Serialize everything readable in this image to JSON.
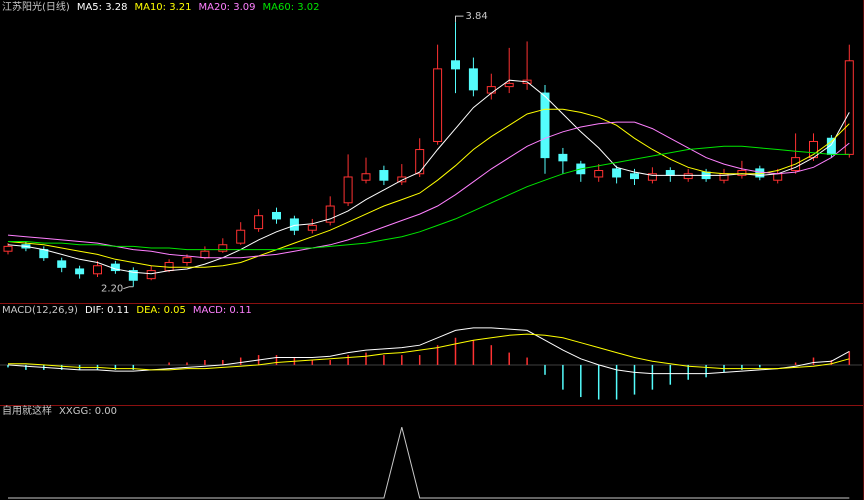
{
  "chart_data": [
    {
      "type": "candlestick",
      "title": "江苏阳光(日线)",
      "title_color": "#c8c8c8",
      "up_color": "#ff3232",
      "down_color": "#54fcfc",
      "ylim": [
        2.13,
        3.89
      ],
      "open": [
        2.42,
        2.46,
        2.43,
        2.36,
        2.31,
        2.28,
        2.34,
        2.3,
        2.25,
        2.3,
        2.35,
        2.38,
        2.42,
        2.47,
        2.56,
        2.66,
        2.62,
        2.55,
        2.6,
        2.72,
        2.86,
        2.92,
        2.85,
        2.9,
        3.1,
        3.6,
        3.55,
        3.4,
        3.44,
        3.46,
        3.4,
        3.02,
        2.96,
        2.88,
        2.93,
        2.9,
        2.86,
        2.92,
        2.87,
        2.91,
        2.86,
        2.89,
        2.93,
        2.86,
        2.92,
        3.0,
        3.12,
        3.02
      ],
      "high": [
        2.47,
        2.48,
        2.45,
        2.38,
        2.33,
        2.36,
        2.36,
        2.32,
        2.33,
        2.37,
        2.4,
        2.45,
        2.5,
        2.6,
        2.68,
        2.69,
        2.64,
        2.62,
        2.76,
        3.02,
        3.0,
        2.95,
        2.96,
        3.12,
        3.7,
        3.84,
        3.62,
        3.52,
        3.68,
        3.72,
        3.45,
        3.06,
        2.98,
        2.96,
        2.95,
        2.93,
        2.94,
        2.94,
        2.93,
        2.93,
        2.93,
        2.98,
        2.95,
        2.93,
        3.15,
        3.15,
        3.14,
        3.7
      ],
      "low": [
        2.4,
        2.42,
        2.36,
        2.29,
        2.25,
        2.26,
        2.28,
        2.2,
        2.24,
        2.29,
        2.33,
        2.37,
        2.41,
        2.46,
        2.54,
        2.59,
        2.52,
        2.53,
        2.58,
        2.7,
        2.84,
        2.83,
        2.83,
        2.88,
        3.08,
        3.4,
        3.38,
        3.36,
        3.4,
        3.42,
        2.9,
        2.9,
        2.85,
        2.85,
        2.84,
        2.83,
        2.84,
        2.85,
        2.85,
        2.85,
        2.84,
        2.87,
        2.86,
        2.84,
        2.9,
        2.98,
        3.0,
        3.0
      ],
      "close": [
        2.45,
        2.44,
        2.38,
        2.32,
        2.28,
        2.33,
        2.3,
        2.24,
        2.3,
        2.35,
        2.38,
        2.42,
        2.46,
        2.55,
        2.64,
        2.62,
        2.55,
        2.58,
        2.7,
        2.88,
        2.9,
        2.86,
        2.88,
        3.05,
        3.55,
        3.55,
        3.42,
        3.44,
        3.46,
        3.48,
        3.0,
        2.98,
        2.9,
        2.92,
        2.88,
        2.87,
        2.9,
        2.89,
        2.9,
        2.87,
        2.9,
        2.92,
        2.88,
        2.9,
        3.0,
        3.1,
        3.02,
        3.6
      ],
      "high_label": {
        "value": 3.84,
        "label": "3.84"
      },
      "low_label": {
        "value": 2.2,
        "label": "2.20"
      },
      "series": [
        {
          "name": "MA5",
          "label": "MA5: 3.28",
          "color": "#ffffff",
          "values": [
            2.46,
            2.45,
            2.43,
            2.4,
            2.37,
            2.35,
            2.31,
            2.29,
            2.28,
            2.3,
            2.31,
            2.34,
            2.38,
            2.43,
            2.49,
            2.54,
            2.58,
            2.59,
            2.62,
            2.67,
            2.74,
            2.8,
            2.86,
            2.91,
            3.05,
            3.18,
            3.31,
            3.4,
            3.48,
            3.47,
            3.38,
            3.27,
            3.16,
            3.06,
            2.94,
            2.91,
            2.89,
            2.89,
            2.89,
            2.89,
            2.89,
            2.9,
            2.89,
            2.9,
            2.94,
            3.0,
            3.08,
            3.28
          ]
        },
        {
          "name": "MA10",
          "label": "MA10: 3.21",
          "color": "#ffff00",
          "values": [
            2.48,
            2.47,
            2.46,
            2.44,
            2.42,
            2.4,
            2.37,
            2.35,
            2.33,
            2.32,
            2.32,
            2.32,
            2.33,
            2.35,
            2.39,
            2.43,
            2.47,
            2.51,
            2.55,
            2.6,
            2.65,
            2.7,
            2.74,
            2.78,
            2.86,
            2.95,
            3.05,
            3.13,
            3.2,
            3.27,
            3.3,
            3.3,
            3.28,
            3.25,
            3.2,
            3.12,
            3.05,
            2.99,
            2.94,
            2.91,
            2.9,
            2.9,
            2.9,
            2.92,
            2.96,
            3.02,
            3.1,
            3.21
          ]
        },
        {
          "name": "MA20",
          "label": "MA20: 3.09",
          "color": "#ff80ff",
          "values": [
            2.52,
            2.51,
            2.5,
            2.49,
            2.48,
            2.47,
            2.45,
            2.43,
            2.42,
            2.4,
            2.39,
            2.38,
            2.38,
            2.38,
            2.39,
            2.4,
            2.42,
            2.44,
            2.46,
            2.49,
            2.53,
            2.57,
            2.61,
            2.65,
            2.7,
            2.77,
            2.85,
            2.93,
            3.0,
            3.07,
            3.12,
            3.16,
            3.19,
            3.21,
            3.22,
            3.22,
            3.18,
            3.12,
            3.06,
            3.0,
            2.96,
            2.93,
            2.91,
            2.9,
            2.91,
            2.94,
            3.0,
            3.09
          ]
        },
        {
          "name": "MA60",
          "label": "MA60: 3.02",
          "color": "#00e600",
          "values": [
            2.48,
            2.48,
            2.47,
            2.47,
            2.46,
            2.46,
            2.45,
            2.45,
            2.44,
            2.44,
            2.43,
            2.43,
            2.43,
            2.43,
            2.43,
            2.43,
            2.44,
            2.44,
            2.45,
            2.46,
            2.47,
            2.49,
            2.51,
            2.54,
            2.58,
            2.62,
            2.67,
            2.72,
            2.77,
            2.82,
            2.86,
            2.9,
            2.93,
            2.95,
            2.97,
            2.99,
            3.01,
            3.03,
            3.05,
            3.06,
            3.07,
            3.07,
            3.06,
            3.05,
            3.04,
            3.03,
            3.02,
            3.02
          ]
        }
      ]
    },
    {
      "type": "macd",
      "title": "MACD(12,26,9)",
      "title_color": "#c8c8c8",
      "up_color": "#ff3232",
      "down_color": "#54fcfc",
      "ylim": [
        -0.3,
        0.38
      ],
      "series": [
        {
          "name": "DIF",
          "label": "DIF: 0.11",
          "color": "#ffffff",
          "values": [
            0.0,
            -0.01,
            -0.02,
            -0.03,
            -0.04,
            -0.04,
            -0.05,
            -0.05,
            -0.04,
            -0.03,
            -0.02,
            -0.01,
            0.0,
            0.02,
            0.04,
            0.06,
            0.06,
            0.06,
            0.07,
            0.1,
            0.12,
            0.13,
            0.14,
            0.16,
            0.22,
            0.28,
            0.3,
            0.3,
            0.29,
            0.28,
            0.2,
            0.12,
            0.05,
            0.0,
            -0.04,
            -0.06,
            -0.07,
            -0.07,
            -0.07,
            -0.07,
            -0.06,
            -0.05,
            -0.04,
            -0.03,
            -0.01,
            0.02,
            0.03,
            0.11
          ]
        },
        {
          "name": "DEA",
          "label": "DEA: 0.05",
          "color": "#ffff00",
          "values": [
            0.01,
            0.01,
            0.0,
            -0.01,
            -0.02,
            -0.02,
            -0.03,
            -0.03,
            -0.04,
            -0.04,
            -0.03,
            -0.03,
            -0.02,
            -0.01,
            0.0,
            0.02,
            0.03,
            0.04,
            0.05,
            0.06,
            0.07,
            0.09,
            0.1,
            0.12,
            0.14,
            0.17,
            0.2,
            0.22,
            0.24,
            0.25,
            0.24,
            0.22,
            0.18,
            0.14,
            0.1,
            0.06,
            0.03,
            0.01,
            -0.01,
            -0.02,
            -0.03,
            -0.03,
            -0.03,
            -0.03,
            -0.02,
            -0.01,
            0.01,
            0.05
          ]
        }
      ],
      "histogram": {
        "name": "MACD",
        "label": "MACD: 0.11",
        "color": "#ff80ff",
        "values": [
          -0.02,
          -0.04,
          -0.04,
          -0.04,
          -0.04,
          -0.04,
          -0.04,
          -0.04,
          0.0,
          0.02,
          0.02,
          0.04,
          0.04,
          0.06,
          0.08,
          0.08,
          0.06,
          0.04,
          0.04,
          0.08,
          0.1,
          0.08,
          0.08,
          0.08,
          0.16,
          0.22,
          0.2,
          0.16,
          0.1,
          0.06,
          -0.08,
          -0.2,
          -0.26,
          -0.28,
          -0.28,
          -0.24,
          -0.2,
          -0.16,
          -0.12,
          -0.1,
          -0.06,
          -0.04,
          -0.02,
          0.0,
          0.02,
          0.06,
          0.04,
          0.11
        ]
      }
    },
    {
      "type": "line",
      "title": "自用就这样",
      "title_color": "#c8c8c8",
      "ylim": [
        0,
        1.1
      ],
      "series": [
        {
          "name": "XXGG",
          "label": "XXGG: 0.00",
          "color": "#c8c8c8",
          "values": [
            0,
            0,
            0,
            0,
            0,
            0,
            0,
            0,
            0,
            0,
            0,
            0,
            0,
            0,
            0,
            0,
            0,
            0,
            0,
            0,
            0,
            0,
            1,
            0,
            0,
            0,
            0,
            0,
            0,
            0,
            0,
            0,
            0,
            0,
            0,
            0,
            0,
            0,
            0,
            0,
            0,
            0,
            0,
            0,
            0,
            0,
            0,
            0
          ]
        }
      ]
    }
  ]
}
